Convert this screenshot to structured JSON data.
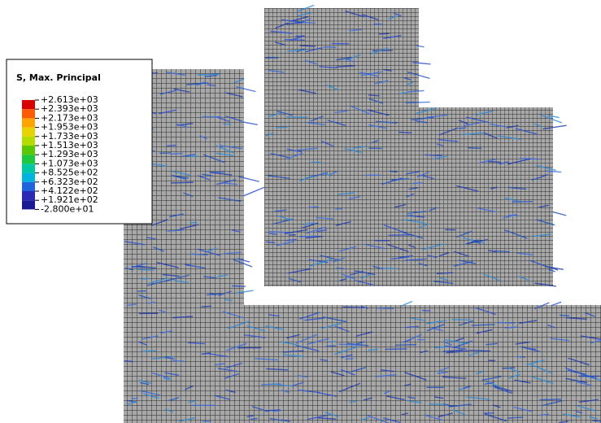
{
  "legend": {
    "title": "S, Max. Principal",
    "labels": [
      "+2.613e+03",
      "+2.393e+03",
      "+2.173e+03",
      "+1.953e+03",
      "+1.733e+03",
      "+1.513e+03",
      "+1.293e+03",
      "+1.073e+03",
      "+8.525e+02",
      "+6.323e+02",
      "+4.122e+02",
      "+1.921e+02",
      "-2.800e+01"
    ],
    "colors": [
      "#d80000",
      "#ff5a00",
      "#ffa400",
      "#e8d200",
      "#b4dc00",
      "#5ac800",
      "#1ec83c",
      "#00c8a0",
      "#00b4dc",
      "#1e64dc",
      "#2a2ab4",
      "#1a1a96"
    ]
  }
}
